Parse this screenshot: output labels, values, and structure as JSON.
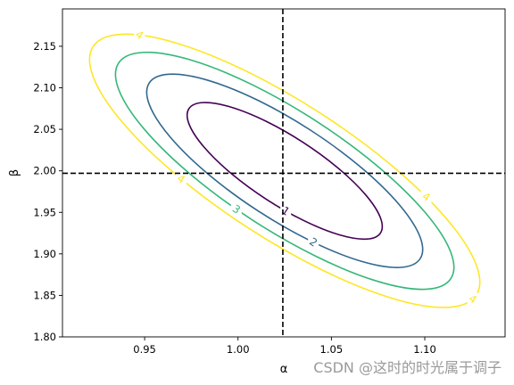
{
  "chart_data": {
    "type": "contour",
    "xlabel": "α",
    "ylabel": "β",
    "xlim": [
      0.906,
      1.143
    ],
    "ylim": [
      1.8,
      2.195
    ],
    "xticks": [
      "0.95",
      "1.00",
      "1.05",
      "1.10"
    ],
    "xtick_values": [
      0.95,
      1.0,
      1.05,
      1.1
    ],
    "yticks": [
      "1.80",
      "1.85",
      "1.90",
      "1.95",
      "2.00",
      "2.05",
      "2.10",
      "2.15"
    ],
    "ytick_values": [
      1.8,
      1.85,
      1.9,
      1.95,
      2.0,
      2.05,
      2.1,
      2.15
    ],
    "grid": false,
    "center": {
      "alpha": 1.025,
      "beta": 2.0
    },
    "reference_lines": {
      "vertical_alpha": 1.024,
      "horizontal_beta": 1.997,
      "style": "dashed",
      "color": "#000000"
    },
    "levels": [
      {
        "level": 1,
        "label": "1",
        "color": "#440154"
      },
      {
        "level": 2,
        "label": "2",
        "color": "#31688e"
      },
      {
        "level": 3,
        "label": "3",
        "color": "#35b779"
      },
      {
        "level": 4,
        "label": "4",
        "color": "#fde725"
      }
    ]
  },
  "watermark": "CSDN @这时的时光属于调子"
}
